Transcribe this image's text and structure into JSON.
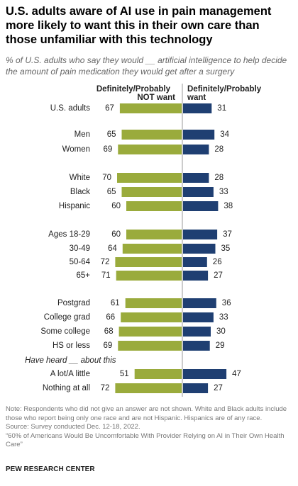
{
  "chart_data": {
    "type": "diverging-bar",
    "title": "U.S. adults aware of AI use in pain management more likely to want this in their own care than those unfamiliar with this technology",
    "subtitle": "% of U.S. adults who say they would __ artificial intelligence to help decide the amount of pain medication they would get after a surgery",
    "categories": [
      "U.S. adults",
      "Men",
      "Women",
      "White",
      "Black",
      "Hispanic",
      "Ages 18-29",
      "30-49",
      "50-64",
      "65+",
      "Postgrad",
      "College grad",
      "Some college",
      "HS or less",
      "A lot/A little",
      "Nothing at all"
    ],
    "group_label": "Have heard __ about this",
    "series": [
      {
        "name": "Definitely/Probably NOT want",
        "color": "#9aab3c",
        "values": [
          67,
          65,
          69,
          70,
          65,
          60,
          60,
          64,
          72,
          71,
          61,
          66,
          68,
          69,
          51,
          72
        ]
      },
      {
        "name": "Definitely/Probably want",
        "color": "#1f3f72",
        "values": [
          31,
          34,
          28,
          28,
          33,
          38,
          37,
          35,
          26,
          27,
          36,
          33,
          30,
          29,
          47,
          27
        ]
      }
    ],
    "note": "Note: Respondents who did not give an answer are not shown. White and Black adults include those who report being only one race and are not Hispanic. Hispanics are of any race.",
    "source": "Source: Survey conducted Dec. 12-18, 2022.",
    "report": "“60% of Americans Would Be Uncomfortable With Provider Relying on AI in Their Own Health Care”",
    "credit": "PEW RESEARCH CENTER"
  }
}
